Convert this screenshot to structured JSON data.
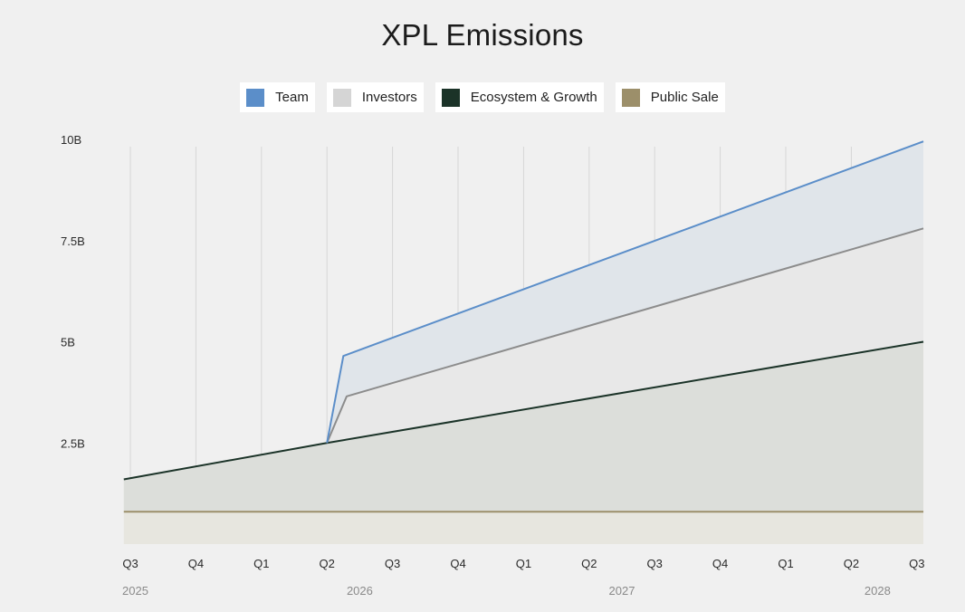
{
  "chart_data": {
    "type": "area",
    "title": "XPL Emissions",
    "xlabel": "",
    "ylabel": "",
    "y_ticks": [
      {
        "value": 2500000000,
        "label": "2.5B"
      },
      {
        "value": 5000000000,
        "label": "5B"
      },
      {
        "value": 7500000000,
        "label": "7.5B"
      },
      {
        "value": 10000000000,
        "label": "10B"
      }
    ],
    "ylim": [
      0,
      10200000000
    ],
    "quarter_labels": [
      "Q3",
      "Q4",
      "Q1",
      "Q2",
      "Q3",
      "Q4",
      "Q1",
      "Q2",
      "Q3",
      "Q4",
      "Q1",
      "Q2",
      "Q3"
    ],
    "year_labels": [
      {
        "label": "2025",
        "quarter_index": 0
      },
      {
        "label": "2026",
        "quarter_index": 3.5
      },
      {
        "label": "2027",
        "quarter_index": 7.5
      },
      {
        "label": "2028",
        "quarter_index": 11.5
      }
    ],
    "stacking": "cumulative",
    "series": [
      {
        "name": "Public Sale",
        "color": "#9c8f6a",
        "fill": "#e7e6df",
        "points": [
          [
            -0.1,
            0.8
          ],
          [
            12.1,
            0.8
          ]
        ]
      },
      {
        "name": "Ecosystem & Growth",
        "color": "#1b3328",
        "fill": "#dcdeda",
        "points": [
          [
            -0.1,
            1.6
          ],
          [
            3.0,
            2.5
          ],
          [
            12.1,
            5.0
          ]
        ]
      },
      {
        "name": "Investors",
        "color": "#8c8c8c",
        "fill": "#e8e8e8",
        "points": [
          [
            3.0,
            2.5
          ],
          [
            3.3,
            3.65
          ],
          [
            12.1,
            7.8
          ]
        ]
      },
      {
        "name": "Team",
        "color": "#5b8ec9",
        "fill": "#e0e5ea",
        "points": [
          [
            3.0,
            2.5
          ],
          [
            3.25,
            4.65
          ],
          [
            12.1,
            9.95
          ]
        ]
      }
    ],
    "legend_order": [
      "Team",
      "Investors",
      "Ecosystem & Growth",
      "Public Sale"
    ],
    "legend_colors": {
      "Team": "#5b8ec9",
      "Investors": "#d5d5d5",
      "Ecosystem & Growth": "#1b3328",
      "Public Sale": "#9c8f6a"
    },
    "grid": "vertical",
    "legend_position": "top"
  }
}
